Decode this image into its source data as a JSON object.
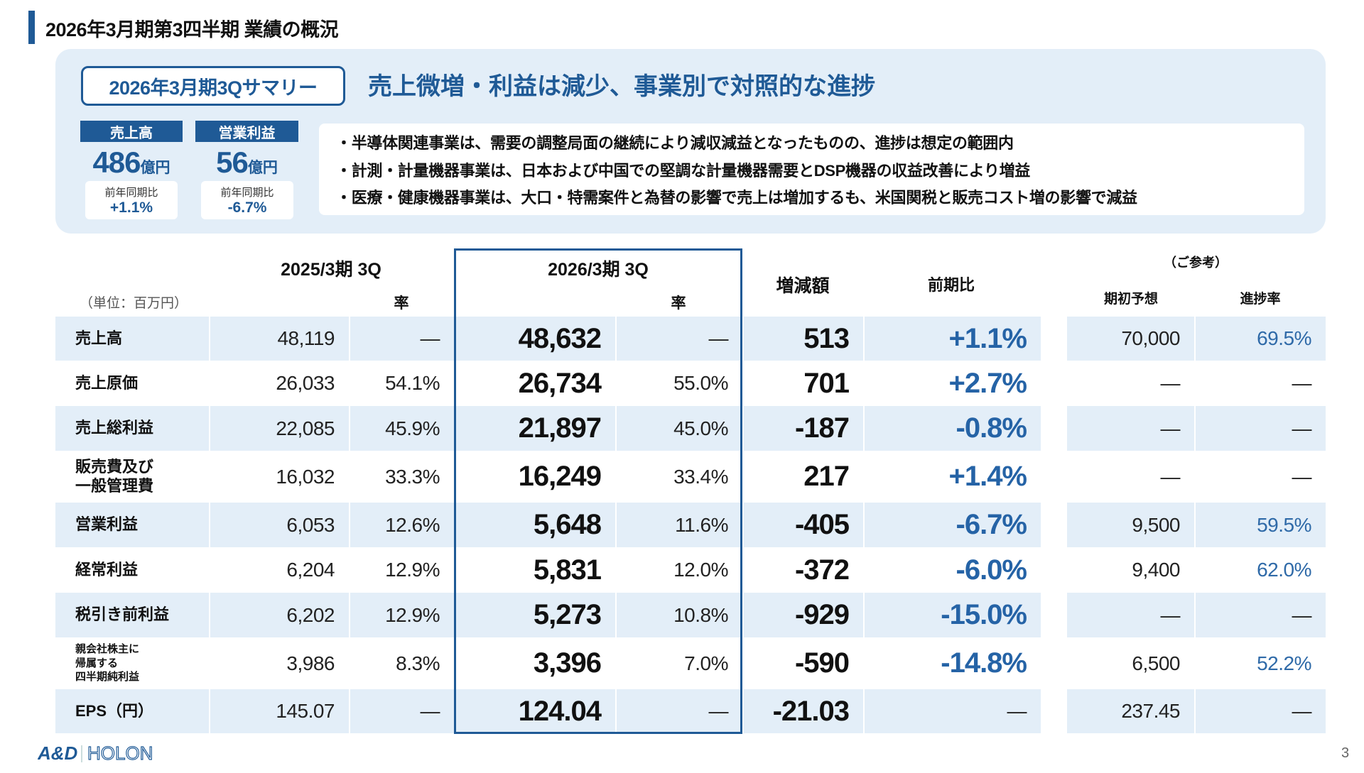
{
  "title": "2026年3月期第3四半期 業績の概況",
  "summary": {
    "label": "2026年3月期3Qサマリー",
    "headline": "売上微増・利益は減少、事業別で対照的な進捗",
    "kpis": [
      {
        "label": "売上高",
        "value": "486",
        "unit": "億円",
        "yoy_label": "前年同期比",
        "yoy": "+1.1%"
      },
      {
        "label": "営業利益",
        "value": "56",
        "unit": "億円",
        "yoy_label": "前年同期比",
        "yoy": "-6.7%"
      }
    ],
    "bullets": [
      "・半導体関連事業は、需要の調整局面の継続により減収減益となったものの、進捗は想定の範囲内",
      "・計測・計量機器事業は、日本および中国での堅調な計量機器需要とDSP機器の収益改善により増益",
      "・医療・健康機器事業は、大口・特需案件と為替の影響で売上は増加するも、米国関税と販売コスト増の影響で減益"
    ]
  },
  "table": {
    "unit": "（単位：百万円）",
    "col_prev": "2025/3期 3Q",
    "col_curr": "2026/3期 3Q",
    "rate": "率",
    "col_diff": "増減額",
    "col_yoy": "前期比",
    "ref": "（ご参考）",
    "col_forecast": "期初予想",
    "col_progress": "進捗率",
    "rows": [
      {
        "label": "売上高",
        "prev": "48,119",
        "prev_rate": "—",
        "curr": "48,632",
        "curr_rate": "—",
        "diff": "513",
        "yoy": "+1.1%",
        "forecast": "70,000",
        "progress": "69.5%"
      },
      {
        "label": "売上原価",
        "prev": "26,033",
        "prev_rate": "54.1%",
        "curr": "26,734",
        "curr_rate": "55.0%",
        "diff": "701",
        "yoy": "+2.7%",
        "forecast": "—",
        "progress": "—"
      },
      {
        "label": "売上総利益",
        "prev": "22,085",
        "prev_rate": "45.9%",
        "curr": "21,897",
        "curr_rate": "45.0%",
        "diff": "-187",
        "yoy": "-0.8%",
        "forecast": "—",
        "progress": "—"
      },
      {
        "label": "販売費及び\n一般管理費",
        "prev": "16,032",
        "prev_rate": "33.3%",
        "curr": "16,249",
        "curr_rate": "33.4%",
        "diff": "217",
        "yoy": "+1.4%",
        "forecast": "—",
        "progress": "—"
      },
      {
        "label": "営業利益",
        "prev": "6,053",
        "prev_rate": "12.6%",
        "curr": "5,648",
        "curr_rate": "11.6%",
        "diff": "-405",
        "yoy": "-6.7%",
        "forecast": "9,500",
        "progress": "59.5%"
      },
      {
        "label": "経常利益",
        "prev": "6,204",
        "prev_rate": "12.9%",
        "curr": "5,831",
        "curr_rate": "12.0%",
        "diff": "-372",
        "yoy": "-6.0%",
        "forecast": "9,400",
        "progress": "62.0%"
      },
      {
        "label": "税引き前利益",
        "prev": "6,202",
        "prev_rate": "12.9%",
        "curr": "5,273",
        "curr_rate": "10.8%",
        "diff": "-929",
        "yoy": "-15.0%",
        "forecast": "—",
        "progress": "—"
      },
      {
        "label": "親会社株主に\n帰属する\n四半期純利益",
        "prev": "3,986",
        "prev_rate": "8.3%",
        "curr": "3,396",
        "curr_rate": "7.0%",
        "diff": "-590",
        "yoy": "-14.8%",
        "forecast": "6,500",
        "progress": "52.2%"
      },
      {
        "label": "EPS（円）",
        "prev": "145.07",
        "prev_rate": "—",
        "curr": "124.04",
        "curr_rate": "—",
        "diff": "-21.03",
        "yoy": "—",
        "forecast": "237.45",
        "progress": "—"
      }
    ]
  },
  "footer": {
    "logo": "A&D HOLON",
    "page": "3"
  },
  "colors": {
    "accent": "#1f5a96",
    "shade": "#e3eef8",
    "blue_text": "#2563a6"
  }
}
